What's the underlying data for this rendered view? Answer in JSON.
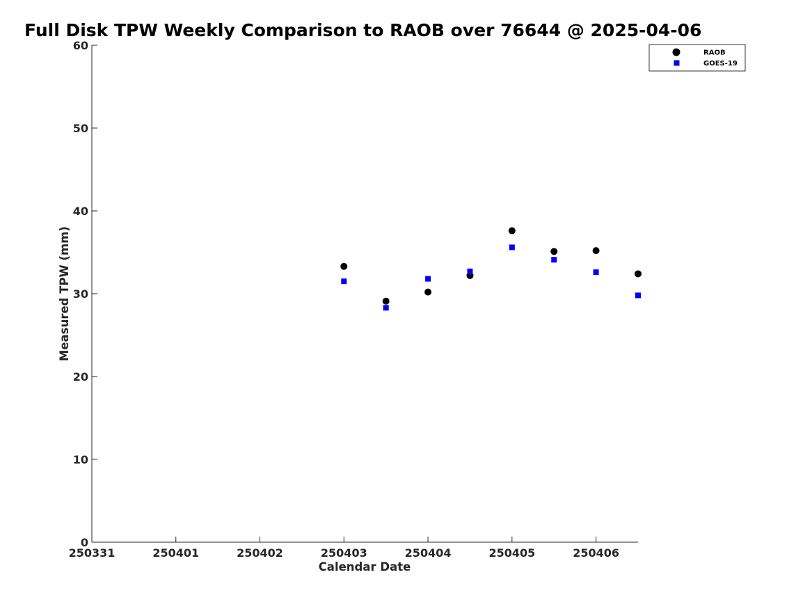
{
  "chart_data": {
    "type": "scatter",
    "title": "Full Disk TPW Weekly Comparison to RAOB over 76644 @ 2025-04-06",
    "xlabel": "Calendar Date",
    "ylabel": "Measured TPW (mm)",
    "xlim": [
      0,
      6.5
    ],
    "ylim": [
      0,
      60
    ],
    "x_ticks": [
      0,
      1,
      2,
      3,
      4,
      5,
      6
    ],
    "x_tick_labels": [
      "250331",
      "250401",
      "250402",
      "250403",
      "250404",
      "250405",
      "250406"
    ],
    "y_ticks": [
      0,
      10,
      20,
      30,
      40,
      50,
      60
    ],
    "y_tick_labels": [
      "0",
      "10",
      "20",
      "30",
      "40",
      "50",
      "60"
    ],
    "grid": false,
    "legend_position": "top-right",
    "series": [
      {
        "name": "RAOB",
        "marker": "circle",
        "color": "#000000",
        "x": [
          3.0,
          3.5,
          4.0,
          4.5,
          5.0,
          5.5,
          6.0,
          6.5
        ],
        "values": [
          33.3,
          29.1,
          30.2,
          32.2,
          37.6,
          35.1,
          35.2,
          32.4
        ]
      },
      {
        "name": "GOES-19",
        "marker": "square",
        "color": "#0000ff",
        "x": [
          3.0,
          3.5,
          4.0,
          4.5,
          5.0,
          5.5,
          6.0,
          6.5
        ],
        "values": [
          31.5,
          28.3,
          31.8,
          32.7,
          35.6,
          34.1,
          32.6,
          29.8
        ]
      }
    ]
  }
}
